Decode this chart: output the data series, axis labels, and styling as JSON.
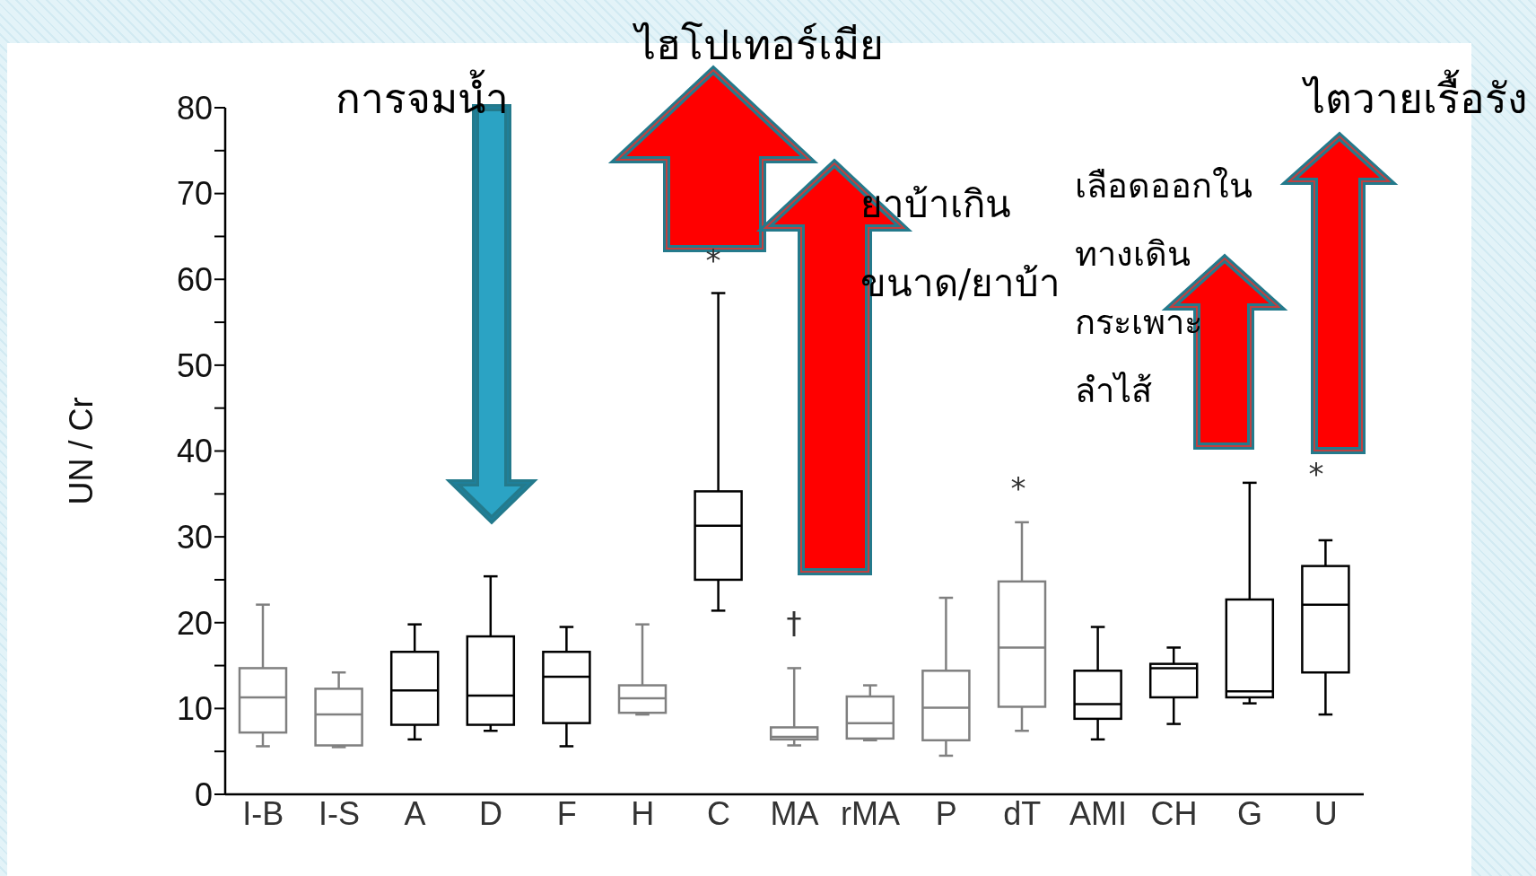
{
  "chart_data": {
    "type": "box",
    "ylabel": "UN / Cr",
    "categories": [
      "I-B",
      "I-S",
      "A",
      "D",
      "F",
      "H",
      "C",
      "MA",
      "rMA",
      "P",
      "dT",
      "AMI",
      "CH",
      "G",
      "U"
    ],
    "boxes": [
      {
        "low": 5.6,
        "q1": 7.2,
        "median": 11.3,
        "q3": 14.7,
        "high": 22.1
      },
      {
        "low": 5.5,
        "q1": 5.7,
        "median": 9.3,
        "q3": 12.3,
        "high": 14.2
      },
      {
        "low": 6.4,
        "q1": 8.1,
        "median": 12.1,
        "q3": 16.6,
        "high": 19.8
      },
      {
        "low": 7.4,
        "q1": 8.1,
        "median": 11.5,
        "q3": 18.4,
        "high": 25.4
      },
      {
        "low": 5.6,
        "q1": 8.3,
        "median": 13.7,
        "q3": 16.6,
        "high": 19.5
      },
      {
        "low": 9.3,
        "q1": 9.5,
        "median": 11.2,
        "q3": 12.7,
        "high": 19.8
      },
      {
        "low": 21.4,
        "q1": 25.0,
        "median": 31.3,
        "q3": 35.3,
        "high": 58.4
      },
      {
        "low": 5.7,
        "q1": 6.4,
        "median": 6.7,
        "q3": 7.8,
        "high": 14.7
      },
      {
        "low": 6.3,
        "q1": 6.5,
        "median": 8.3,
        "q3": 11.4,
        "high": 12.7
      },
      {
        "low": 4.5,
        "q1": 6.3,
        "median": 10.1,
        "q3": 14.4,
        "high": 22.9
      },
      {
        "low": 7.4,
        "q1": 10.2,
        "median": 17.1,
        "q3": 24.8,
        "high": 31.7
      },
      {
        "low": 6.4,
        "q1": 8.8,
        "median": 10.5,
        "q3": 14.4,
        "high": 19.5
      },
      {
        "low": 8.2,
        "q1": 11.3,
        "median": 14.7,
        "q3": 15.2,
        "high": 17.1
      },
      {
        "low": 10.6,
        "q1": 11.3,
        "median": 12.0,
        "q3": 22.7,
        "high": 36.3
      },
      {
        "low": 9.3,
        "q1": 14.2,
        "median": 22.1,
        "q3": 26.6,
        "high": 29.6
      }
    ],
    "colors": [
      "#808080",
      "#808080",
      "#000000",
      "#000000",
      "#000000",
      "#808080",
      "#000000",
      "#808080",
      "#808080",
      "#808080",
      "#808080",
      "#000000",
      "#000000",
      "#000000",
      "#000000"
    ],
    "ylim": [
      0,
      80
    ],
    "yticks": [
      0,
      {
        "value": 5,
        "label": null
      },
      10,
      {
        "value": 15,
        "label": null
      },
      20,
      {
        "value": 25,
        "label": null
      },
      30,
      {
        "value": 35,
        "label": null
      },
      40,
      {
        "value": 45,
        "label": null
      },
      50,
      {
        "value": 55,
        "label": null
      },
      60,
      {
        "value": 65,
        "label": null
      },
      70,
      {
        "value": 75,
        "label": null
      },
      80
    ],
    "grid": false,
    "legend": false,
    "annotations": [
      "*",
      "†",
      "*",
      "*",
      "ไฮโปเทอร์เมีย",
      "การจมน้ำ",
      "ไตวายเรื้อรัง",
      "ยาบ้าเกิน\nขนาด/ยาบ้า",
      "เลือดออกใน\nทางเดิน\nกระเพาะ\nลำไส้"
    ]
  }
}
